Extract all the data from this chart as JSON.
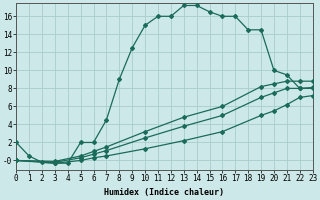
{
  "xlabel": "Humidex (Indice chaleur)",
  "bg_color": "#cce8e8",
  "line_color": "#1a6b5a",
  "grid_color": "#aacccc",
  "x_min": 0,
  "x_max": 23,
  "y_min": -1,
  "y_max": 17.5,
  "series1_x": [
    0,
    1,
    2,
    3,
    4,
    5,
    6,
    7,
    8,
    9,
    10,
    11,
    12,
    13,
    14,
    15,
    16,
    17,
    18,
    19,
    20,
    21,
    22,
    23
  ],
  "series1_y": [
    2.0,
    0.5,
    -0.2,
    -0.3,
    -0.3,
    2.0,
    2.0,
    4.5,
    9.0,
    12.5,
    15.0,
    16.0,
    16.0,
    17.2,
    17.2,
    16.5,
    16.0,
    16.0,
    14.5,
    14.5,
    10.0,
    9.5,
    8.0,
    8.0
  ],
  "series2_x": [
    0,
    3,
    5,
    6,
    7,
    10,
    13,
    16,
    19,
    20,
    21,
    22,
    23
  ],
  "series2_y": [
    0,
    -0.3,
    0.0,
    0.3,
    0.5,
    1.3,
    2.2,
    3.2,
    5.0,
    5.5,
    6.2,
    7.0,
    7.2
  ],
  "series3_x": [
    0,
    3,
    5,
    6,
    7,
    10,
    13,
    16,
    19,
    20,
    21,
    22,
    23
  ],
  "series3_y": [
    0,
    -0.2,
    0.3,
    0.7,
    1.1,
    2.5,
    3.8,
    5.0,
    7.0,
    7.5,
    8.0,
    8.0,
    8.1
  ],
  "series4_x": [
    0,
    3,
    5,
    6,
    7,
    10,
    13,
    16,
    19,
    20,
    21,
    22,
    23
  ],
  "series4_y": [
    0,
    -0.1,
    0.5,
    1.0,
    1.5,
    3.2,
    4.8,
    6.0,
    8.2,
    8.5,
    8.8,
    8.8,
    8.8
  ],
  "yticks": [
    0,
    2,
    4,
    6,
    8,
    10,
    12,
    14,
    16
  ],
  "xticks": [
    0,
    1,
    2,
    3,
    4,
    5,
    6,
    7,
    8,
    9,
    10,
    11,
    12,
    13,
    14,
    15,
    16,
    17,
    18,
    19,
    20,
    21,
    22,
    23
  ],
  "markersize": 2.0,
  "linewidth": 0.9,
  "tick_fontsize": 5.5,
  "xlabel_fontsize": 6.0
}
